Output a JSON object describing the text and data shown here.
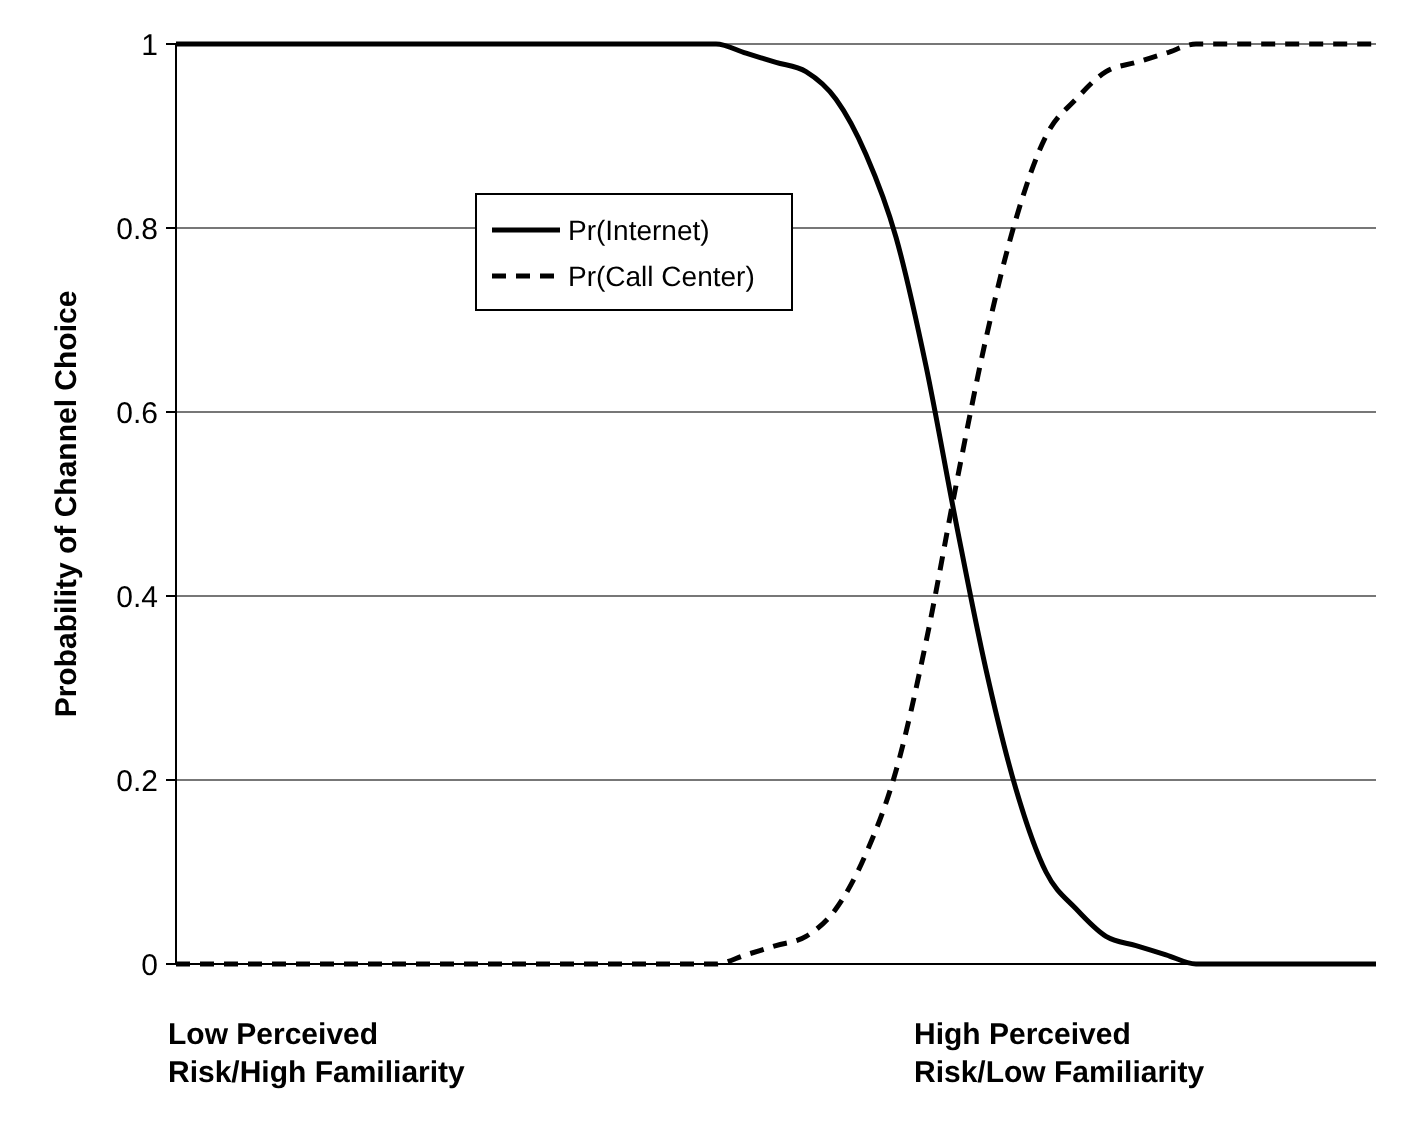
{
  "chart_data": {
    "type": "line",
    "ylabel": "Probability of Channel Choice",
    "categories": [
      null,
      null,
      null,
      null,
      null,
      null,
      null,
      null,
      null,
      null,
      null,
      null,
      null,
      null,
      null,
      null,
      null,
      null,
      null,
      null,
      null,
      null,
      null,
      null,
      null,
      null,
      null,
      null,
      null,
      null,
      null,
      null,
      null,
      null,
      null,
      null,
      null,
      null,
      null,
      null,
      null
    ],
    "series": [
      {
        "name": "Pr(Internet)",
        "color": "#000000",
        "line_style": "solid",
        "values": [
          1,
          1,
          1,
          1,
          1,
          1,
          1,
          1,
          1,
          1,
          1,
          1,
          1,
          1,
          1,
          1,
          1,
          1,
          1,
          0.99,
          0.98,
          0.97,
          0.94,
          0.88,
          0.79,
          0.65,
          0.48,
          0.32,
          0.19,
          0.1,
          0.06,
          0.03,
          0.02,
          0.01,
          0,
          0,
          0,
          0,
          0,
          0,
          0
        ]
      },
      {
        "name": "Pr(Call Center)",
        "color": "#000000",
        "line_style": "dashed",
        "values": [
          0,
          0,
          0,
          0,
          0,
          0,
          0,
          0,
          0,
          0,
          0,
          0,
          0,
          0,
          0,
          0,
          0,
          0,
          0,
          0.01,
          0.02,
          0.03,
          0.06,
          0.12,
          0.21,
          0.35,
          0.52,
          0.68,
          0.81,
          0.9,
          0.94,
          0.97,
          0.98,
          0.99,
          1,
          1,
          1,
          1,
          1,
          1,
          1
        ]
      }
    ],
    "ylim": [
      0,
      1
    ],
    "yticks": [
      0,
      0.2,
      0.4,
      0.6,
      0.8,
      1
    ],
    "grid": "y",
    "legend": "top left",
    "tick_labels": "y",
    "marker": "none",
    "annotations": [
      "Low Perceived\nRisk/High Familiarity",
      "High Perceived\nRisk/Low Familiarity"
    ]
  }
}
